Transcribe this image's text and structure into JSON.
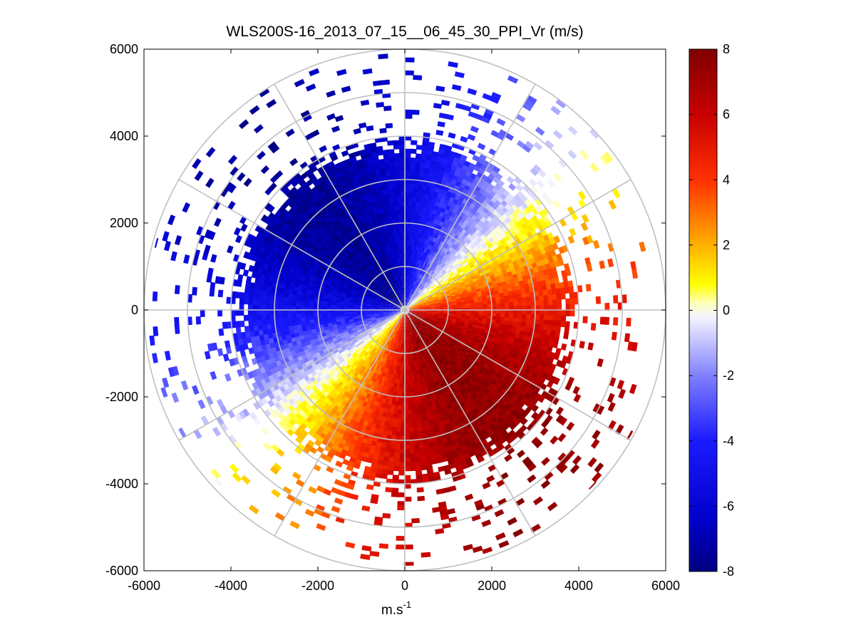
{
  "chart_data": {
    "type": "heatmap",
    "subtype": "polar-ppi",
    "title": "WLS200S-16_2013_07_15__06_45_30_PPI_Vr (m/s)",
    "xlabel": "m.s",
    "xlabel_sup": "-1",
    "ylabel": "",
    "xlim": [
      -6000,
      6000
    ],
    "ylim": [
      -6000,
      6000
    ],
    "x_ticks": [
      -6000,
      -4000,
      -2000,
      0,
      2000,
      4000,
      6000
    ],
    "y_ticks": [
      -6000,
      -4000,
      -2000,
      0,
      2000,
      4000,
      6000
    ],
    "x_tick_labels": [
      "-6000",
      "-4000",
      "-2000",
      "0",
      "2000",
      "4000",
      "6000"
    ],
    "y_tick_labels": [
      "-6000",
      "-4000",
      "-2000",
      "0",
      "2000",
      "4000",
      "6000"
    ],
    "range_rings_m": [
      1000,
      2000,
      3000,
      4000,
      5000,
      6000
    ],
    "spokes_deg": [
      0,
      30,
      60,
      90,
      120,
      150,
      180,
      210,
      240,
      270,
      300,
      330
    ],
    "colorbar": {
      "min": -8,
      "max": 8,
      "ticks": [
        -8,
        -6,
        -4,
        -2,
        0,
        2,
        4,
        6,
        8
      ],
      "tick_labels": [
        "-8",
        "-6",
        "-4",
        "-2",
        "0",
        "2",
        "4",
        "6",
        "8"
      ],
      "colormap": "blue-white-yellow-red",
      "stops": [
        {
          "v": -8,
          "color": "#000080"
        },
        {
          "v": -6.5,
          "color": "#0000c8"
        },
        {
          "v": -4,
          "color": "#1a1aff"
        },
        {
          "v": -2,
          "color": "#8080ff"
        },
        {
          "v": -0.2,
          "color": "#f4f4ff"
        },
        {
          "v": 0.2,
          "color": "#ffffc0"
        },
        {
          "v": 0.8,
          "color": "#ffff00"
        },
        {
          "v": 2,
          "color": "#ffb000"
        },
        {
          "v": 4,
          "color": "#ff3000"
        },
        {
          "v": 6,
          "color": "#c80000"
        },
        {
          "v": 8,
          "color": "#800000"
        }
      ]
    },
    "wind_field": {
      "description": "radial velocity PPI scan",
      "amplitude_ms": 7.5,
      "zero_line_azimuth_deg": 50,
      "max_positive_azimuth_deg": 140,
      "dense_range_max_m": 4000,
      "sparse_range_max_m": 6000
    }
  }
}
